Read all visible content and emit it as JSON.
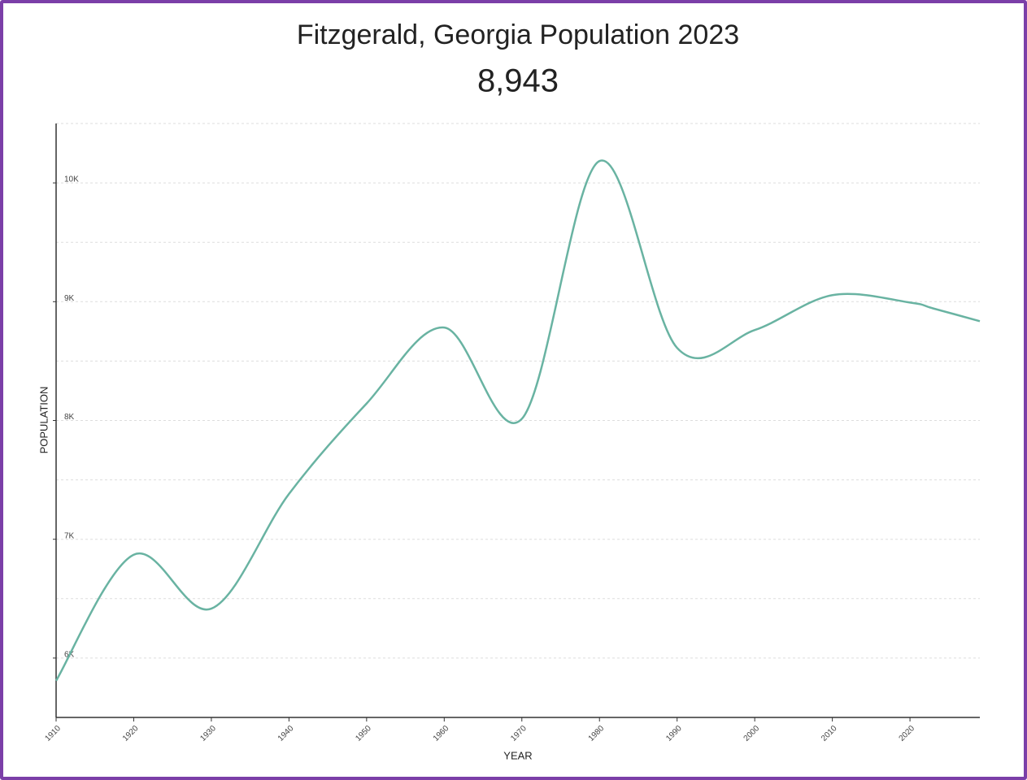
{
  "chart_data": {
    "type": "line",
    "title": "Fitzgerald, Georgia Population 2023",
    "subtitle": "8,943",
    "x_label": "YEAR",
    "y_label": "POPULATION",
    "x": [
      1910,
      1920,
      1930,
      1940,
      1950,
      1960,
      1970,
      1980,
      1990,
      2000,
      2010,
      2020,
      2023,
      2029
    ],
    "series": [
      {
        "name": "Population",
        "color": "#69b3a2",
        "values": [
          5809,
          6870,
          6416,
          7382,
          8143,
          8782,
          8014,
          10184,
          8611,
          8761,
          9055,
          8993,
          8943,
          8836
        ]
      }
    ],
    "xlim": [
      1910,
      2029
    ],
    "xticks": [
      1910,
      1920,
      1930,
      1940,
      1950,
      1960,
      1970,
      1980,
      1990,
      2000,
      2010,
      2020
    ],
    "ylim": [
      5500,
      10500
    ],
    "yticks": [
      {
        "value": 6000,
        "label": "6K"
      },
      {
        "value": 7000,
        "label": "7K"
      },
      {
        "value": 8000,
        "label": "8K"
      },
      {
        "value": 9000,
        "label": "9K"
      },
      {
        "value": 10000,
        "label": "10K"
      }
    ],
    "ygrid": [
      6000,
      6500,
      7000,
      7500,
      8000,
      8500,
      9000,
      9500,
      10000,
      10500
    ],
    "grid": true
  }
}
